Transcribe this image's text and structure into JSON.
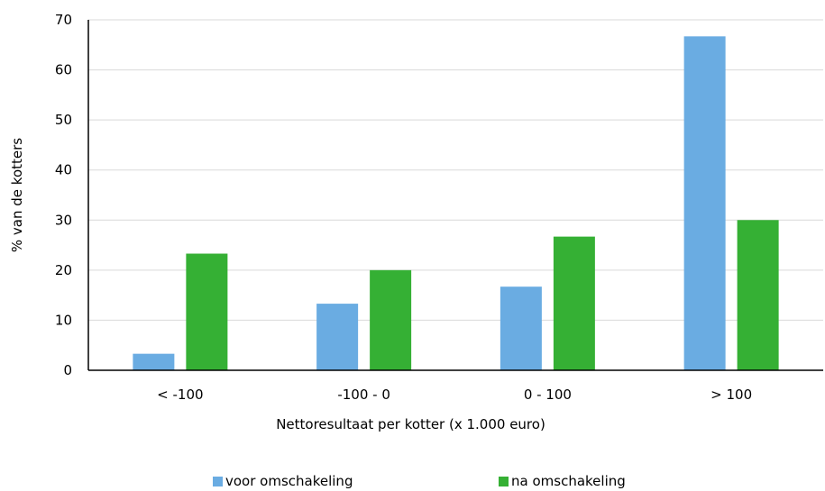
{
  "chart_data": {
    "type": "bar",
    "categories": [
      "< -100",
      "-100 - 0",
      "0 - 100",
      "> 100"
    ],
    "series": [
      {
        "name": "voor omschakeling",
        "values": [
          3.3,
          13.3,
          16.7,
          66.7
        ],
        "color": "#6aace2"
      },
      {
        "name": "na omschakeling",
        "values": [
          23.3,
          20.0,
          26.7,
          30.0
        ],
        "color": "#35b034"
      }
    ],
    "title": "",
    "xlabel": "Nettoresultaat per kotter (x 1.000 euro)",
    "ylabel": "% van de kotters",
    "ylim": [
      0,
      70
    ],
    "yticks": [
      "0",
      "10",
      "20",
      "30",
      "40",
      "50",
      "60",
      "70"
    ],
    "grid": true,
    "legend_position": "bottom"
  }
}
